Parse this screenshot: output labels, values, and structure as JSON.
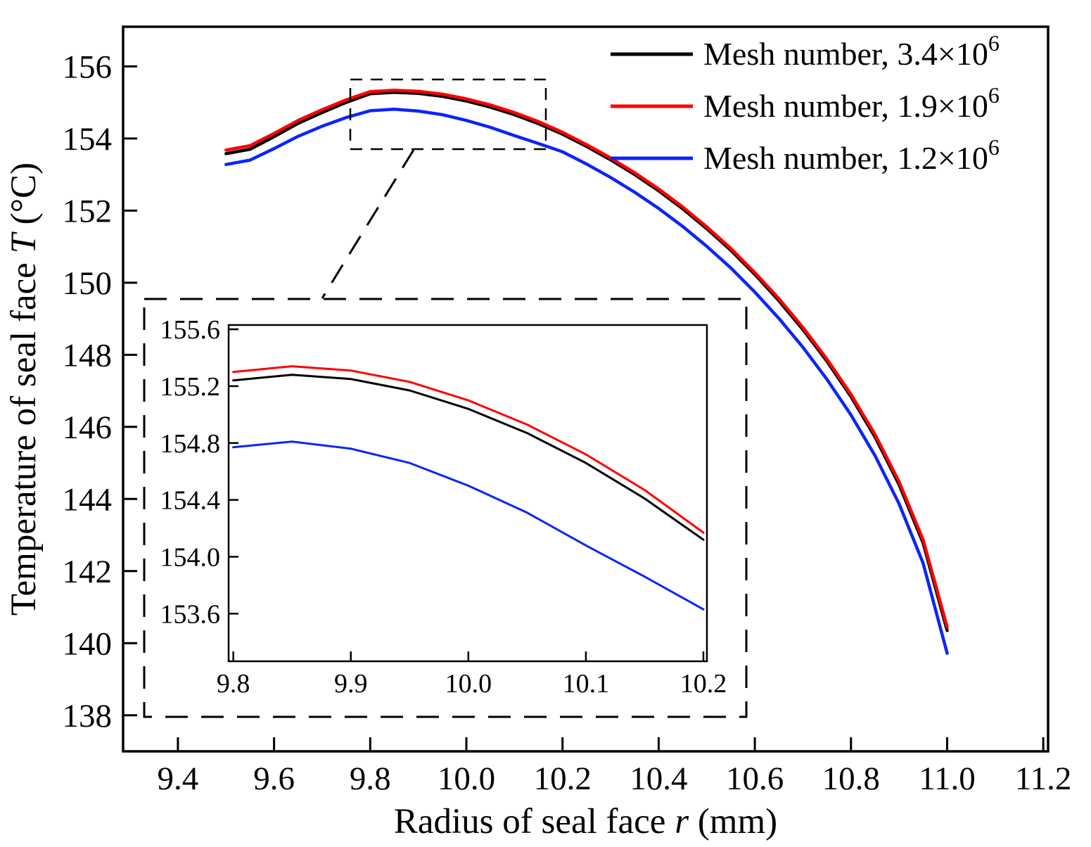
{
  "chart_data": {
    "type": "line",
    "title": "",
    "xlabel": {
      "pre": "Radius of seal face  ",
      "var": "r",
      "post": " (mm)"
    },
    "ylabel": {
      "pre": "Temperature of seal face  ",
      "var": "T",
      "post": " (°C)"
    },
    "xlim": [
      9.286,
      11.21
    ],
    "ylim": [
      137.0,
      157.1
    ],
    "grid": false,
    "x_ticks": [
      "9.4",
      "9.6",
      "9.8",
      "10.0",
      "10.2",
      "10.4",
      "10.6",
      "10.8",
      "11.0",
      "11.2"
    ],
    "y_ticks": [
      "138",
      "140",
      "142",
      "144",
      "146",
      "148",
      "150",
      "152",
      "154",
      "156"
    ],
    "x": [
      9.5,
      9.55,
      9.6,
      9.65,
      9.7,
      9.75,
      9.8,
      9.85,
      9.9,
      9.95,
      10.0,
      10.05,
      10.1,
      10.15,
      10.2,
      10.25,
      10.3,
      10.35,
      10.4,
      10.45,
      10.5,
      10.55,
      10.6,
      10.65,
      10.7,
      10.75,
      10.8,
      10.85,
      10.9,
      10.95,
      11.0
    ],
    "series": [
      {
        "id": "mesh-3.4e6",
        "name": "Mesh number, 3.4×10⁶",
        "legend_base": "Mesh number, 3.4×10",
        "legend_exp": "6",
        "color": "#000000",
        "values": [
          153.58,
          153.7,
          154.05,
          154.42,
          154.72,
          155.0,
          155.24,
          155.28,
          155.25,
          155.17,
          155.04,
          154.87,
          154.66,
          154.41,
          154.12,
          153.78,
          153.41,
          153.0,
          152.55,
          152.05,
          151.5,
          150.9,
          150.23,
          149.5,
          148.7,
          147.82,
          146.84,
          145.72,
          144.4,
          142.78,
          140.35
        ]
      },
      {
        "id": "mesh-1.9e6",
        "name": "Mesh number, 1.9×10⁶",
        "legend_base": "Mesh number, 1.9×10",
        "legend_exp": "6",
        "color": "#fe0000",
        "values": [
          153.68,
          153.8,
          154.14,
          154.5,
          154.8,
          155.07,
          155.3,
          155.34,
          155.31,
          155.23,
          155.1,
          154.93,
          154.72,
          154.47,
          154.17,
          153.83,
          153.46,
          153.05,
          152.6,
          152.1,
          151.55,
          150.95,
          150.28,
          149.56,
          148.76,
          147.88,
          146.9,
          145.79,
          144.48,
          142.87,
          140.45
        ]
      },
      {
        "id": "mesh-1.2e6",
        "name": "Mesh number, 1.2×10⁶",
        "legend_base": "Mesh number, 1.2×10",
        "legend_exp": "6",
        "color": "#0b24fb",
        "values": [
          153.28,
          153.4,
          153.72,
          154.06,
          154.34,
          154.58,
          154.77,
          154.81,
          154.76,
          154.66,
          154.5,
          154.31,
          154.08,
          153.86,
          153.63,
          153.29,
          152.92,
          152.51,
          152.06,
          151.56,
          151.01,
          150.41,
          149.74,
          149.01,
          148.21,
          147.32,
          146.33,
          145.2,
          143.87,
          142.22,
          139.72
        ]
      }
    ],
    "legend": {
      "position": "top-right"
    },
    "inset": {
      "xlim": [
        9.796,
        10.203
      ],
      "ylim": [
        153.265,
        155.63
      ],
      "x_shown": [
        9.8,
        10.2
      ],
      "x_ticks": [
        "9.8",
        "9.9",
        "10.0",
        "10.1",
        "10.2"
      ],
      "y_ticks": [
        "153.6",
        "154.0",
        "154.4",
        "154.8",
        "155.2",
        "155.6"
      ]
    }
  }
}
